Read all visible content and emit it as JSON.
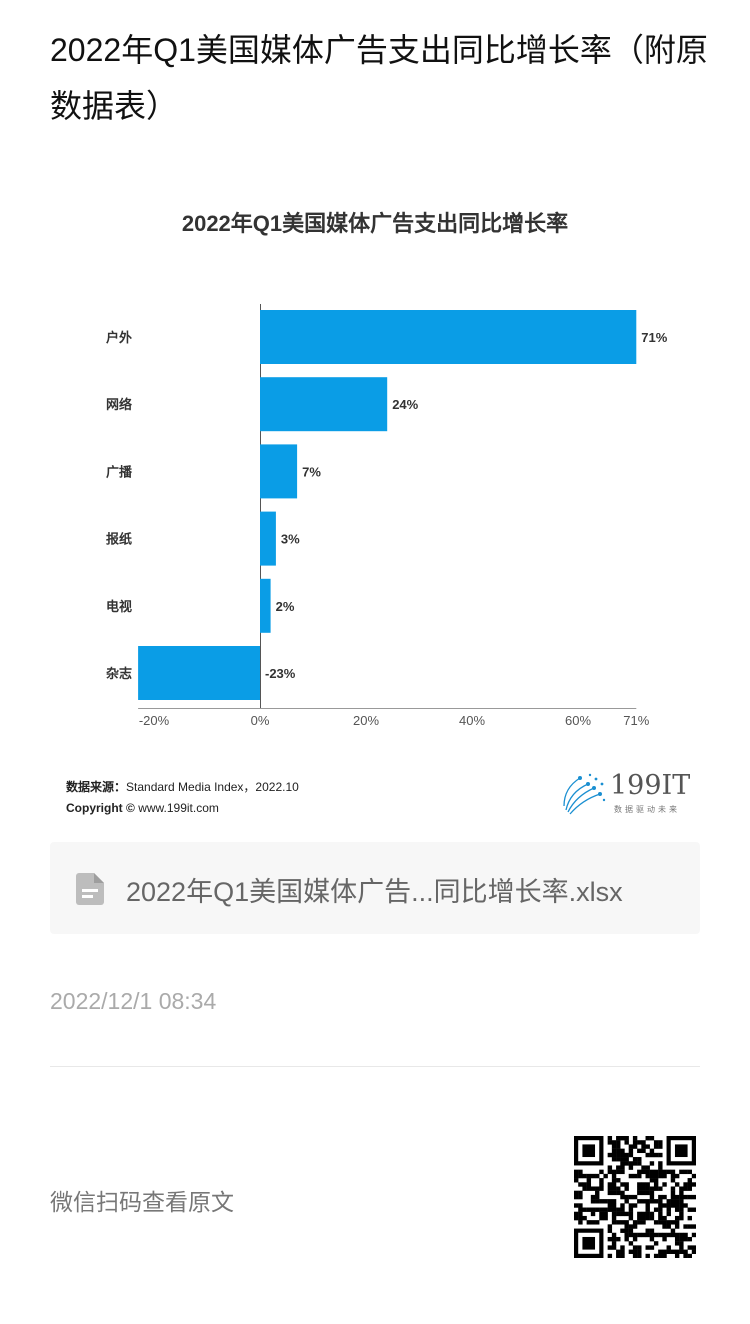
{
  "page": {
    "title": "2022年Q1美国媒体广告支出同比增长率（附原数据表）",
    "file_name": "2022年Q1美国媒体广告...同比增长率.xlsx",
    "date": "2022/12/1 08:34",
    "scan_text": "微信扫码查看原文"
  },
  "source": {
    "label": "数据来源：",
    "text": "Standard Media Index，2022.10",
    "copyright_label": "Copyright ©",
    "copyright_text": "www.199it.com"
  },
  "logo": {
    "text": "199IT",
    "sub": "数据驱动未来"
  },
  "icons": {
    "file": "file-icon",
    "qr": "qr-code-icon"
  },
  "colors": {
    "bar": "#0a9de6",
    "logo": "#1a8fd1"
  },
  "chart_data": {
    "type": "bar",
    "orientation": "horizontal",
    "title": "2022年Q1美国媒体广告支出同比增长率",
    "categories": [
      "户外",
      "网络",
      "广播",
      "报纸",
      "电视",
      "杂志"
    ],
    "values": [
      71,
      24,
      7,
      3,
      2,
      -23
    ],
    "value_labels": [
      "71%",
      "24%",
      "7%",
      "3%",
      "2%",
      "-23%"
    ],
    "xlim": [
      -23,
      71
    ],
    "xticks": [
      -20,
      0,
      20,
      40,
      60,
      71
    ],
    "xtick_labels": [
      "-20%",
      "0%",
      "20%",
      "40%",
      "60%",
      "71%"
    ],
    "grid": false,
    "legend": "none"
  }
}
